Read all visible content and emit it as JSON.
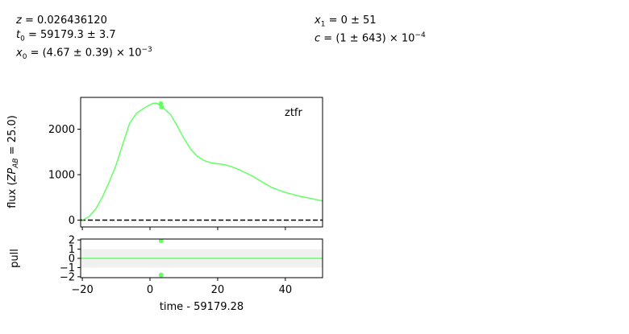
{
  "params": {
    "z": "0.026436120",
    "t0": "59179.3 ± 3.7",
    "x0_value": "(4.67 ± 0.39)",
    "x0_exp": "−3",
    "x1": "0 ± 51",
    "c_value": "(1 ± 643)",
    "c_exp": "−4"
  },
  "chart_data": [
    {
      "type": "line",
      "panel": "flux",
      "band_label": "ztfr",
      "ylabel": "flux (ZP_AB = 25.0)",
      "xlim": [
        -20.5,
        51
      ],
      "ylim": [
        -150,
        2700
      ],
      "xticks": [
        "−20",
        "0",
        "20",
        "40"
      ],
      "yticks": [
        {
          "label": "0",
          "value": 0
        },
        {
          "label": "1000",
          "value": 1000
        },
        {
          "label": "2000",
          "value": 2000
        }
      ],
      "series": [
        {
          "color": "#66ff66",
          "x": [
            -20,
            -18,
            -16,
            -14,
            -12,
            -10,
            -8,
            -6,
            -4,
            -2,
            0,
            1,
            2,
            3,
            4,
            6,
            8,
            10,
            12,
            14,
            16,
            18,
            20,
            22,
            24,
            26,
            28,
            30,
            32,
            34,
            36,
            38,
            40,
            42,
            44,
            46,
            48,
            51
          ],
          "y": [
            0,
            80,
            250,
            520,
            850,
            1220,
            1680,
            2130,
            2350,
            2450,
            2540,
            2570,
            2570,
            2520,
            2460,
            2330,
            2080,
            1800,
            1560,
            1400,
            1310,
            1260,
            1240,
            1220,
            1180,
            1120,
            1050,
            980,
            890,
            800,
            720,
            660,
            610,
            570,
            530,
            500,
            470,
            420
          ]
        }
      ],
      "points": {
        "color": "#66ff66",
        "x": [
          3.2,
          3.4
        ],
        "y": [
          2560,
          2490
        ]
      },
      "baseline": 0
    },
    {
      "type": "line",
      "panel": "pull",
      "ylabel": "pull",
      "xlabel": "time - 59179.28",
      "xlim": [
        -20.5,
        51
      ],
      "ylim": [
        -2.1,
        2.1
      ],
      "xticks": [
        {
          "label": "−20",
          "value": -20
        },
        {
          "label": "0",
          "value": 0
        },
        {
          "label": "20",
          "value": 20
        },
        {
          "label": "40",
          "value": 40
        }
      ],
      "yticks": [
        {
          "label": "2",
          "value": 2
        },
        {
          "label": "1",
          "value": 1
        },
        {
          "label": "0",
          "value": 0
        },
        {
          "label": "−1",
          "value": -1
        },
        {
          "label": "−2",
          "value": -2
        }
      ],
      "band": [
        -1,
        1
      ],
      "zero_line_color": "#66ff66",
      "points": {
        "color": "#66ff66",
        "x": [
          3.3,
          3.3
        ],
        "y": [
          1.9,
          -1.8
        ]
      }
    }
  ]
}
